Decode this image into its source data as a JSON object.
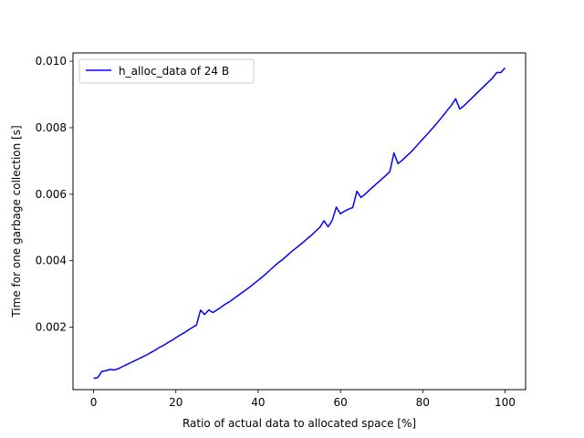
{
  "chart_data": {
    "type": "line",
    "title": "",
    "xlabel": "Ratio of actual data to allocated space [%]",
    "ylabel": "Time for one garbage collection [s]",
    "xlim": [
      -5,
      105
    ],
    "ylim": [
      0.00012,
      0.01025
    ],
    "xticks": [
      0,
      20,
      40,
      60,
      80,
      100
    ],
    "xtick_labels": [
      "0",
      "20",
      "40",
      "60",
      "80",
      "100"
    ],
    "yticks": [
      0.002,
      0.004,
      0.006,
      0.008,
      0.01
    ],
    "ytick_labels": [
      "0.002",
      "0.004",
      "0.006",
      "0.008",
      "0.010"
    ],
    "grid": false,
    "legend_position": "top-left",
    "series": [
      {
        "name": "h_alloc_data of 24 B",
        "color": "#0000ff",
        "x": [
          0,
          1,
          2,
          3,
          4,
          5,
          6,
          7,
          8,
          9,
          10,
          11,
          12,
          13,
          14,
          15,
          16,
          17,
          18,
          19,
          20,
          21,
          22,
          23,
          24,
          25,
          26,
          27,
          28,
          29,
          30,
          31,
          32,
          33,
          34,
          35,
          36,
          37,
          38,
          39,
          40,
          41,
          42,
          43,
          44,
          45,
          46,
          47,
          48,
          49,
          50,
          51,
          52,
          53,
          54,
          55,
          56,
          57,
          58,
          59,
          60,
          61,
          62,
          63,
          64,
          65,
          66,
          67,
          68,
          69,
          70,
          71,
          72,
          73,
          74,
          75,
          76,
          77,
          78,
          79,
          80,
          81,
          82,
          83,
          84,
          85,
          86,
          87,
          88,
          89,
          90,
          91,
          92,
          93,
          94,
          95,
          96,
          97,
          98,
          99,
          100
        ],
        "y": [
          0.00046,
          0.00048,
          0.00067,
          0.00069,
          0.00073,
          0.00071,
          0.00075,
          0.00081,
          0.00087,
          0.00093,
          0.00099,
          0.00105,
          0.00111,
          0.00117,
          0.00124,
          0.00131,
          0.00139,
          0.00145,
          0.00153,
          0.0016,
          0.00168,
          0.00176,
          0.00183,
          0.00191,
          0.00199,
          0.00206,
          0.00251,
          0.00238,
          0.00252,
          0.00244,
          0.00252,
          0.0026,
          0.00269,
          0.00276,
          0.00285,
          0.00294,
          0.00303,
          0.00312,
          0.00321,
          0.00331,
          0.00341,
          0.00351,
          0.00362,
          0.00373,
          0.00384,
          0.00395,
          0.00404,
          0.00415,
          0.00426,
          0.00436,
          0.00446,
          0.00456,
          0.00467,
          0.00477,
          0.00489,
          0.005,
          0.0052,
          0.00502,
          0.00521,
          0.00561,
          0.00541,
          0.00549,
          0.00555,
          0.0056,
          0.00609,
          0.0059,
          0.006,
          0.00612,
          0.00623,
          0.00634,
          0.00645,
          0.00656,
          0.00668,
          0.00724,
          0.00692,
          0.00702,
          0.00714,
          0.00725,
          0.00738,
          0.00752,
          0.00766,
          0.00779,
          0.00793,
          0.00807,
          0.00822,
          0.00837,
          0.00853,
          0.00868,
          0.00887,
          0.00856,
          0.00866,
          0.00878,
          0.0089,
          0.00902,
          0.00914,
          0.00926,
          0.00938,
          0.0095,
          0.00966,
          0.00966,
          0.0098
        ]
      }
    ]
  }
}
